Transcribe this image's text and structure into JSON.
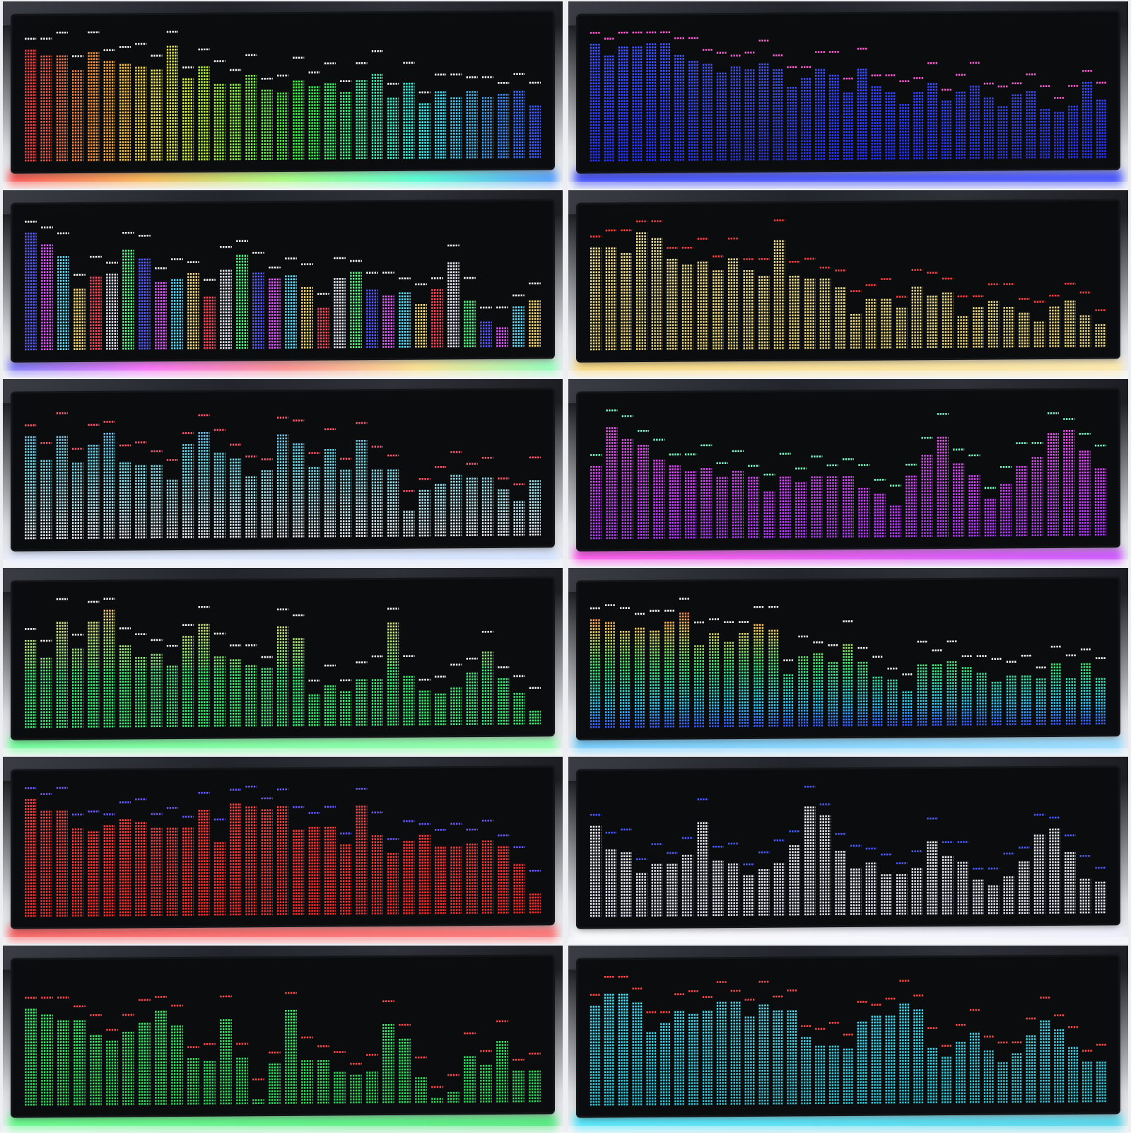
{
  "collage": {
    "grid": {
      "columns": 2,
      "rows": 6
    },
    "tiles": [
      {
        "id": "t1",
        "scheme": "rainbow",
        "peak_color": "#ffffff",
        "glow": [
          "#ff3a3a",
          "#ffb03a",
          "#9cff6a",
          "#3affd0",
          "#3a8cff"
        ],
        "levels": [
          0.92,
          0.87,
          0.88,
          0.76,
          0.91,
          0.82,
          0.81,
          0.78,
          0.76,
          0.96,
          0.68,
          0.77,
          0.63,
          0.63,
          0.71,
          0.59,
          0.55,
          0.65,
          0.6,
          0.64,
          0.56,
          0.65,
          0.71,
          0.51,
          0.63,
          0.46,
          0.55,
          0.51,
          0.56,
          0.52,
          0.54,
          0.56,
          0.45
        ]
      },
      {
        "id": "t2",
        "scheme": "blue",
        "peak_color": "#ff5cd6",
        "glow": [
          "#2b3bff",
          "#2b3bff"
        ],
        "levels": [
          0.98,
          0.88,
          0.96,
          0.94,
          0.97,
          0.98,
          0.88,
          0.82,
          0.8,
          0.72,
          0.78,
          0.76,
          0.8,
          0.75,
          0.6,
          0.68,
          0.75,
          0.7,
          0.56,
          0.75,
          0.62,
          0.56,
          0.47,
          0.56,
          0.64,
          0.48,
          0.56,
          0.6,
          0.5,
          0.45,
          0.54,
          0.57,
          0.42,
          0.38,
          0.44,
          0.64,
          0.48
        ]
      },
      {
        "id": "t3",
        "scheme": "multicolor",
        "peak_color": "#ffffff",
        "glow": [
          "#6a6aff",
          "#ff5cff",
          "#ff8080",
          "#ffe080",
          "#80ffb0"
        ],
        "levels": [
          0.97,
          0.87,
          0.78,
          0.52,
          0.6,
          0.64,
          0.82,
          0.76,
          0.56,
          0.58,
          0.64,
          0.43,
          0.67,
          0.77,
          0.64,
          0.58,
          0.62,
          0.5,
          0.35,
          0.58,
          0.64,
          0.49,
          0.45,
          0.46,
          0.36,
          0.48,
          0.7,
          0.38,
          0.21,
          0.18,
          0.33,
          0.4
        ]
      },
      {
        "id": "t4",
        "scheme": "gold",
        "peak_color": "#ff4040",
        "glow": [
          "#ffd870",
          "#ffe8a0"
        ],
        "levels": [
          0.86,
          0.86,
          0.81,
          0.97,
          0.92,
          0.76,
          0.71,
          0.73,
          0.66,
          0.76,
          0.67,
          0.6,
          0.9,
          0.62,
          0.58,
          0.58,
          0.52,
          0.3,
          0.42,
          0.42,
          0.35,
          0.52,
          0.44,
          0.46,
          0.28,
          0.35,
          0.4,
          0.33,
          0.3,
          0.22,
          0.33,
          0.38,
          0.26,
          0.2
        ]
      },
      {
        "id": "t5",
        "scheme": "icecyan",
        "peak_color": "#ff5a6e",
        "glow": [
          "#dfe9ff",
          "#cfe0ff"
        ],
        "levels": [
          0.86,
          0.65,
          0.85,
          0.63,
          0.79,
          0.87,
          0.64,
          0.61,
          0.61,
          0.49,
          0.78,
          0.89,
          0.71,
          0.67,
          0.51,
          0.57,
          0.86,
          0.78,
          0.58,
          0.74,
          0.57,
          0.81,
          0.56,
          0.57,
          0.22,
          0.38,
          0.43,
          0.5,
          0.48,
          0.49,
          0.4,
          0.29,
          0.46
        ]
      },
      {
        "id": "t6",
        "scheme": "purple",
        "peak_color": "#7effc8",
        "glow": [
          "#ff3ee8",
          "#c63cff"
        ],
        "levels": [
          0.62,
          0.93,
          0.84,
          0.78,
          0.65,
          0.62,
          0.55,
          0.58,
          0.52,
          0.55,
          0.5,
          0.38,
          0.5,
          0.47,
          0.5,
          0.5,
          0.5,
          0.41,
          0.36,
          0.28,
          0.5,
          0.68,
          0.82,
          0.62,
          0.5,
          0.32,
          0.45,
          0.58,
          0.66,
          0.86,
          0.88,
          0.71,
          0.55
        ]
      },
      {
        "id": "t7",
        "scheme": "greenyellow",
        "peak_color": "#ffffff",
        "glow": [
          "#5cff8a",
          "#80ff9e"
        ],
        "levels": [
          0.73,
          0.59,
          0.87,
          0.66,
          0.88,
          0.97,
          0.69,
          0.59,
          0.61,
          0.52,
          0.75,
          0.86,
          0.58,
          0.55,
          0.52,
          0.48,
          0.83,
          0.72,
          0.26,
          0.34,
          0.3,
          0.38,
          0.4,
          0.85,
          0.42,
          0.29,
          0.27,
          0.31,
          0.43,
          0.62,
          0.4,
          0.27,
          0.11
        ]
      },
      {
        "id": "t8",
        "scheme": "heat",
        "peak_color": "#ffffff",
        "glow": [
          "#60c8ff",
          "#8ad8ff"
        ],
        "levels": [
          0.9,
          0.88,
          0.8,
          0.82,
          0.81,
          0.87,
          0.94,
          0.68,
          0.77,
          0.71,
          0.77,
          0.86,
          0.8,
          0.44,
          0.58,
          0.62,
          0.54,
          0.68,
          0.53,
          0.42,
          0.4,
          0.29,
          0.5,
          0.52,
          0.54,
          0.49,
          0.43,
          0.36,
          0.42,
          0.42,
          0.38,
          0.52,
          0.39,
          0.51,
          0.4
        ]
      },
      {
        "id": "t9",
        "scheme": "red",
        "peak_color": "#6a5cff",
        "glow": [
          "#ff4a4a",
          "#ff6060"
        ],
        "levels": [
          0.98,
          0.88,
          0.87,
          0.73,
          0.71,
          0.76,
          0.81,
          0.77,
          0.72,
          0.72,
          0.74,
          0.89,
          0.61,
          0.92,
          0.9,
          0.88,
          0.91,
          0.71,
          0.72,
          0.74,
          0.59,
          0.9,
          0.67,
          0.52,
          0.62,
          0.66,
          0.55,
          0.56,
          0.58,
          0.62,
          0.56,
          0.42,
          0.18
        ]
      },
      {
        "id": "t10",
        "scheme": "white",
        "peak_color": "#4a5cff",
        "glow": [
          "#ffffff",
          "#f0f0ff"
        ],
        "levels": [
          0.76,
          0.56,
          0.54,
          0.36,
          0.43,
          0.43,
          0.5,
          0.77,
          0.47,
          0.45,
          0.35,
          0.4,
          0.43,
          0.59,
          0.9,
          0.83,
          0.53,
          0.4,
          0.44,
          0.34,
          0.35,
          0.38,
          0.6,
          0.48,
          0.43,
          0.3,
          0.24,
          0.31,
          0.45,
          0.66,
          0.7,
          0.52,
          0.3,
          0.27
        ]
      },
      {
        "id": "t11",
        "scheme": "green",
        "peak_color": "#ff4a4a",
        "glow": [
          "#50ff7a",
          "#3ae86a"
        ],
        "levels": [
          0.8,
          0.75,
          0.7,
          0.71,
          0.58,
          0.53,
          0.6,
          0.69,
          0.77,
          0.66,
          0.39,
          0.36,
          0.71,
          0.4,
          0.06,
          0.34,
          0.77,
          0.36,
          0.37,
          0.26,
          0.24,
          0.26,
          0.66,
          0.54,
          0.22,
          0.04,
          0.1,
          0.38,
          0.31,
          0.52,
          0.28,
          0.28
        ]
      },
      {
        "id": "t12",
        "scheme": "teal",
        "peak_color": "#ff4a4a",
        "glow": [
          "#3ae8ff",
          "#3ad0e8"
        ],
        "levels": [
          0.82,
          0.92,
          0.93,
          0.85,
          0.62,
          0.69,
          0.77,
          0.75,
          0.77,
          0.86,
          0.85,
          0.74,
          0.83,
          0.77,
          0.79,
          0.56,
          0.48,
          0.48,
          0.47,
          0.68,
          0.72,
          0.73,
          0.83,
          0.77,
          0.46,
          0.39,
          0.52,
          0.58,
          0.45,
          0.34,
          0.42,
          0.56,
          0.69,
          0.6,
          0.47,
          0.35,
          0.34
        ]
      }
    ]
  }
}
